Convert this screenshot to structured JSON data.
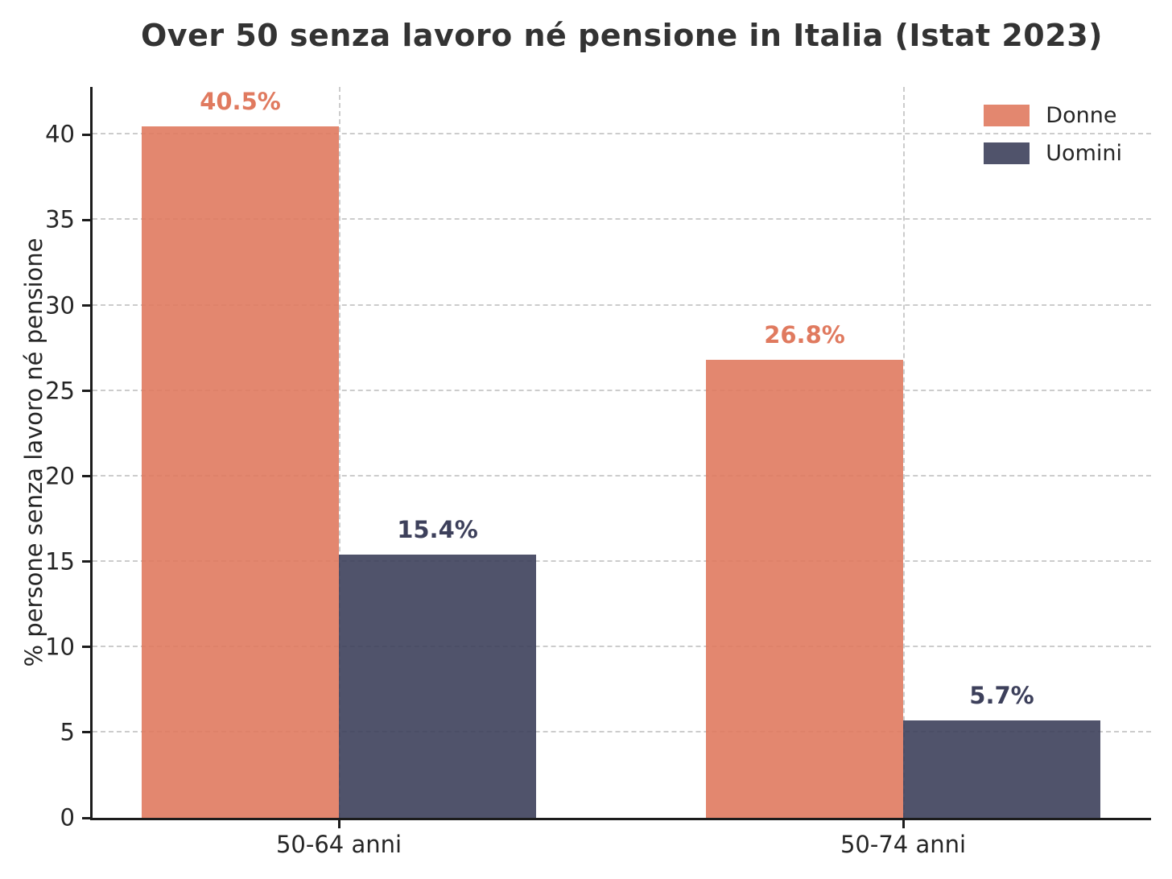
{
  "chart_data": {
    "type": "bar",
    "title": "Over 50 senza lavoro né pensione in Italia (Istat 2023)",
    "categories": [
      "50-64 anni",
      "50-74 anni"
    ],
    "series": [
      {
        "name": "Donne",
        "values": [
          40.5,
          26.8
        ],
        "data_labels": [
          "40.5%",
          "26.8%"
        ],
        "color": "#E07A5F",
        "bar_fill": "rgba(224,122,95,0.9)"
      },
      {
        "name": "Uomini",
        "values": [
          15.4,
          5.7
        ],
        "data_labels": [
          "15.4%",
          "5.7%"
        ],
        "color": "#3D405B",
        "bar_fill": "rgba(61,64,91,0.9)"
      }
    ],
    "xlabel": "",
    "ylabel": "% persone senza lavoro né pensione",
    "yticks": [
      0,
      5,
      10,
      15,
      20,
      25,
      30,
      35,
      40
    ],
    "ylim": [
      0,
      42.8
    ],
    "grid": {
      "style": "dashed",
      "color": "#cccccc",
      "horizontal": true,
      "vertical": true
    },
    "legend": {
      "position": "upper-right",
      "items": [
        "Donne",
        "Uomini"
      ]
    }
  }
}
